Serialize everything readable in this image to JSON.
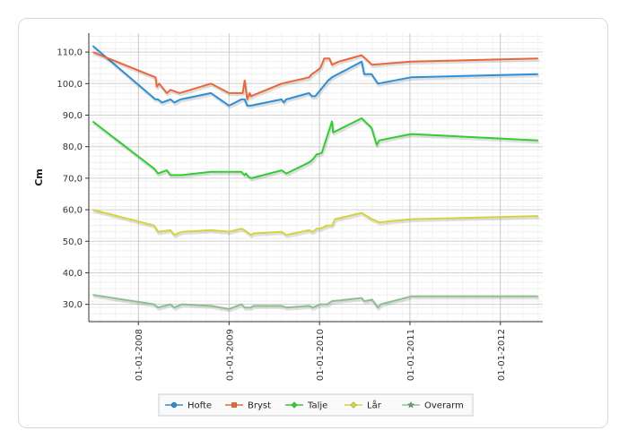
{
  "chart_data": {
    "type": "line",
    "title": "",
    "xlabel": "",
    "ylabel": "Cm",
    "ylim": [
      24.5,
      116
    ],
    "xlim": [
      "2007-06-15",
      "2012-06-20"
    ],
    "y_ticks": [
      "30,0",
      "40,0",
      "50,0",
      "60,0",
      "70,0",
      "80,0",
      "90,0",
      "100,0",
      "110,0"
    ],
    "y_tick_values": [
      30,
      40,
      50,
      60,
      70,
      80,
      90,
      100,
      110
    ],
    "x_ticks": [
      "01-01-2008",
      "01-01-2009",
      "01-01-2010",
      "01-01-2011",
      "01-01-2012"
    ],
    "x_tick_values": [
      "2008-01-01",
      "2009-01-01",
      "2010-01-01",
      "2011-01-01",
      "2012-01-01"
    ],
    "grid": true,
    "legend_position": "bottom",
    "series": [
      {
        "name": "Hofte",
        "color": "#2f8fd4",
        "marker": "circle",
        "points": [
          [
            "2007-07-01",
            112
          ],
          [
            "2008-03-10",
            95
          ],
          [
            "2008-03-20",
            95
          ],
          [
            "2008-04-05",
            94
          ],
          [
            "2008-05-10",
            95
          ],
          [
            "2008-05-25",
            94
          ],
          [
            "2008-06-20",
            95
          ],
          [
            "2008-10-20",
            97
          ],
          [
            "2009-01-01",
            93
          ],
          [
            "2009-02-20",
            95
          ],
          [
            "2009-03-05",
            95
          ],
          [
            "2009-03-15",
            93
          ],
          [
            "2009-03-30",
            93
          ],
          [
            "2009-08-01",
            95
          ],
          [
            "2009-08-10",
            94
          ],
          [
            "2009-08-20",
            95
          ],
          [
            "2009-11-20",
            97
          ],
          [
            "2009-12-01",
            96
          ],
          [
            "2009-12-15",
            96
          ],
          [
            "2010-01-05",
            98
          ],
          [
            "2010-02-05",
            101
          ],
          [
            "2010-02-20",
            102
          ],
          [
            "2010-06-20",
            107
          ],
          [
            "2010-06-30",
            103
          ],
          [
            "2010-07-30",
            103
          ],
          [
            "2010-08-25",
            100
          ],
          [
            "2011-01-05",
            102
          ],
          [
            "2012-06-01",
            103
          ]
        ]
      },
      {
        "name": "Bryst",
        "color": "#e8683a",
        "marker": "square",
        "points": [
          [
            "2007-07-01",
            110
          ],
          [
            "2008-03-10",
            102
          ],
          [
            "2008-03-15",
            99
          ],
          [
            "2008-03-25",
            100
          ],
          [
            "2008-04-25",
            97
          ],
          [
            "2008-05-10",
            98
          ],
          [
            "2008-06-15",
            97
          ],
          [
            "2008-10-20",
            100
          ],
          [
            "2009-01-01",
            97
          ],
          [
            "2009-02-25",
            97
          ],
          [
            "2009-03-05",
            101
          ],
          [
            "2009-03-15",
            95
          ],
          [
            "2009-03-25",
            97
          ],
          [
            "2009-03-30",
            96
          ],
          [
            "2009-08-01",
            100
          ],
          [
            "2009-11-20",
            102
          ],
          [
            "2009-12-01",
            103
          ],
          [
            "2009-12-20",
            104
          ],
          [
            "2010-01-05",
            105
          ],
          [
            "2010-01-20",
            108
          ],
          [
            "2010-02-10",
            108
          ],
          [
            "2010-02-20",
            106
          ],
          [
            "2010-03-20",
            107
          ],
          [
            "2010-06-20",
            109
          ],
          [
            "2010-07-05",
            108
          ],
          [
            "2010-08-01",
            106
          ],
          [
            "2011-01-05",
            107
          ],
          [
            "2012-06-01",
            108
          ]
        ]
      },
      {
        "name": "Talje",
        "color": "#33cc33",
        "marker": "diamond",
        "points": [
          [
            "2007-07-01",
            88
          ],
          [
            "2008-03-05",
            73
          ],
          [
            "2008-03-20",
            71.5
          ],
          [
            "2008-04-25",
            72.5
          ],
          [
            "2008-05-10",
            71
          ],
          [
            "2008-06-25",
            71
          ],
          [
            "2008-10-20",
            72
          ],
          [
            "2009-02-20",
            72
          ],
          [
            "2009-03-05",
            71
          ],
          [
            "2009-03-10",
            71.5
          ],
          [
            "2009-03-20",
            70.5
          ],
          [
            "2009-04-01",
            70
          ],
          [
            "2009-08-01",
            72.5
          ],
          [
            "2009-08-20",
            71.5
          ],
          [
            "2009-11-20",
            75
          ],
          [
            "2009-12-05",
            76
          ],
          [
            "2009-12-20",
            77.5
          ],
          [
            "2010-01-10",
            78
          ],
          [
            "2010-02-20",
            88
          ],
          [
            "2010-02-25",
            84.5
          ],
          [
            "2010-06-20",
            89
          ],
          [
            "2010-07-30",
            86
          ],
          [
            "2010-08-20",
            80.5
          ],
          [
            "2010-08-30",
            82
          ],
          [
            "2011-01-05",
            84
          ],
          [
            "2012-06-01",
            82
          ]
        ]
      },
      {
        "name": "Lår",
        "color": "#d6d43c",
        "marker": "diamond",
        "points": [
          [
            "2007-07-01",
            60
          ],
          [
            "2008-03-05",
            55
          ],
          [
            "2008-03-20",
            53
          ],
          [
            "2008-05-10",
            53.5
          ],
          [
            "2008-05-25",
            52
          ],
          [
            "2008-06-25",
            53
          ],
          [
            "2008-10-20",
            53.5
          ],
          [
            "2009-01-01",
            53
          ],
          [
            "2009-02-20",
            54
          ],
          [
            "2009-03-05",
            53.5
          ],
          [
            "2009-03-30",
            52
          ],
          [
            "2009-04-10",
            52.5
          ],
          [
            "2009-08-01",
            53
          ],
          [
            "2009-08-20",
            52
          ],
          [
            "2009-11-20",
            53.5
          ],
          [
            "2009-12-05",
            53
          ],
          [
            "2009-12-20",
            54
          ],
          [
            "2010-01-05",
            54
          ],
          [
            "2010-02-01",
            55
          ],
          [
            "2010-02-20",
            55
          ],
          [
            "2010-03-05",
            57
          ],
          [
            "2010-06-20",
            59
          ],
          [
            "2010-08-01",
            57
          ],
          [
            "2010-08-30",
            56
          ],
          [
            "2011-01-05",
            57
          ],
          [
            "2012-06-01",
            58
          ]
        ]
      },
      {
        "name": "Overarm",
        "color": "#8fbf8f",
        "marker": "star",
        "points": [
          [
            "2007-07-01",
            33
          ],
          [
            "2008-03-05",
            30
          ],
          [
            "2008-03-20",
            29
          ],
          [
            "2008-05-10",
            30
          ],
          [
            "2008-05-25",
            29
          ],
          [
            "2008-06-25",
            30
          ],
          [
            "2008-10-20",
            29.5
          ],
          [
            "2009-01-01",
            28.5
          ],
          [
            "2009-02-20",
            30
          ],
          [
            "2009-03-05",
            29
          ],
          [
            "2009-03-30",
            29
          ],
          [
            "2009-04-10",
            29.5
          ],
          [
            "2009-08-01",
            29.5
          ],
          [
            "2009-08-20",
            29
          ],
          [
            "2009-11-20",
            29.5
          ],
          [
            "2009-12-05",
            29
          ],
          [
            "2009-12-20",
            29.5
          ],
          [
            "2010-01-05",
            30
          ],
          [
            "2010-02-01",
            30
          ],
          [
            "2010-02-20",
            31
          ],
          [
            "2010-06-20",
            32
          ],
          [
            "2010-07-01",
            31
          ],
          [
            "2010-08-01",
            31.5
          ],
          [
            "2010-08-25",
            29
          ],
          [
            "2010-09-05",
            30
          ],
          [
            "2011-01-05",
            32.5
          ],
          [
            "2012-06-01",
            32.5
          ]
        ]
      }
    ]
  }
}
